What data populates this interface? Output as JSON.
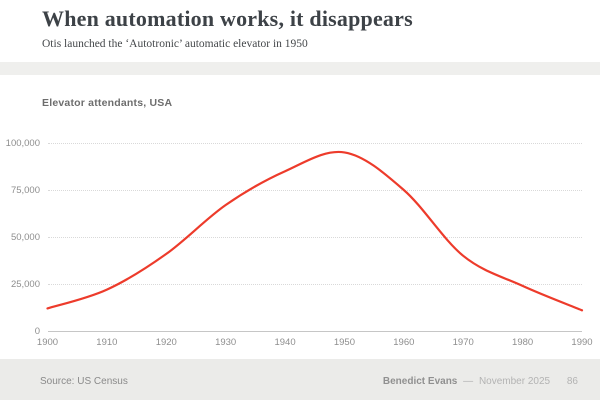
{
  "slide": {
    "title": "When automation works, it disappears",
    "subtitle": "Otis launched the ‘Autotronic’ automatic elevator in 1950"
  },
  "chart": {
    "label": "Elevator attendants, USA"
  },
  "chart_data": {
    "type": "line",
    "title": "Elevator attendants, USA",
    "x": [
      1900,
      1910,
      1920,
      1930,
      1940,
      1950,
      1960,
      1970,
      1980,
      1990
    ],
    "values": [
      12000,
      22000,
      41000,
      67000,
      85000,
      95000,
      75000,
      40000,
      24000,
      11000
    ],
    "xlabel": "",
    "ylabel": "",
    "xlim": [
      1900,
      1990
    ],
    "ylim": [
      0,
      100000
    ],
    "xticks": [
      1900,
      1910,
      1920,
      1930,
      1940,
      1950,
      1960,
      1970,
      1980,
      1990
    ],
    "yticks": [
      0,
      25000,
      50000,
      75000,
      100000
    ],
    "ytick_labels": [
      "0",
      "25,000",
      "50,000",
      "75,000",
      "100,000"
    ],
    "grid": "horizontal-dotted",
    "legend": "none",
    "line_color": "#ed3b2b",
    "line_width": 2.2
  },
  "footer": {
    "source": "Source: US Census",
    "author": "Benedict Evans",
    "separator": "—",
    "date": "November 2025",
    "page": "86"
  },
  "colors": {
    "accent_red": "#ed3b2b",
    "footer_bg": "#ebebe9",
    "band_bg": "#efefed",
    "title_text": "#3d4247",
    "muted_text": "#8e8e8e"
  }
}
